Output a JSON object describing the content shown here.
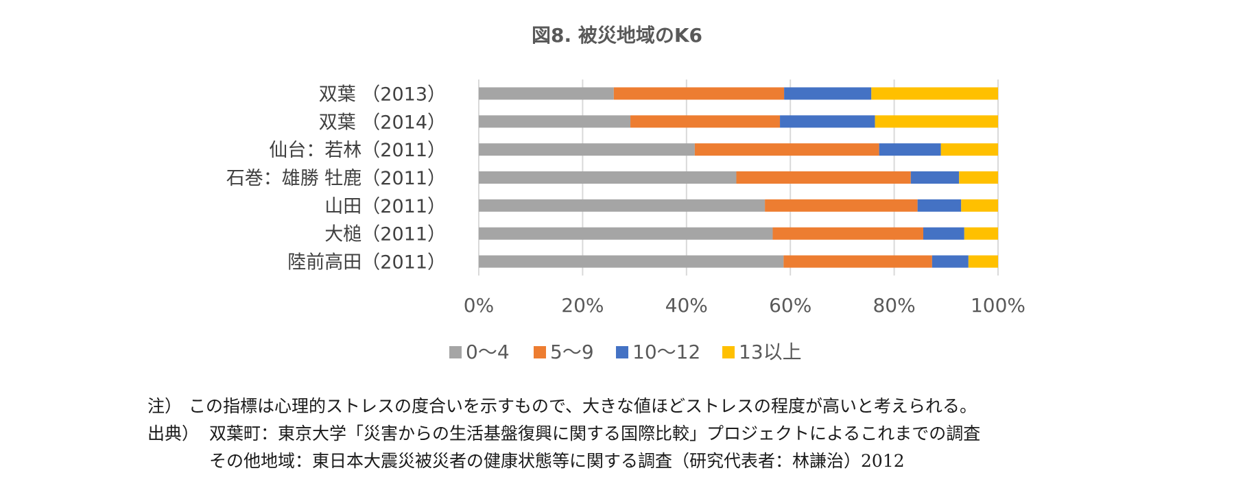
{
  "chart_data": {
    "type": "bar",
    "orientation": "horizontal",
    "stacked": "percent",
    "title": "図8. 被災地域のK6",
    "categories": [
      "双葉 （2013）",
      "双葉 （2014）",
      "仙台：若林（2011）",
      "石巻：雄勝 牡鹿（2011）",
      "山田（2011）",
      "大槌（2011）",
      "陸前高田（2011）"
    ],
    "series": [
      {
        "name": "0～4",
        "color": "#a5a5a5",
        "values": [
          26,
          29.2,
          41.6,
          49.6,
          55.1,
          56.6,
          58.7
        ]
      },
      {
        "name": "5～9",
        "color": "#ed7d31",
        "values": [
          32.8,
          28.8,
          35.5,
          33.6,
          29.4,
          29.0,
          28.6
        ]
      },
      {
        "name": "10～12",
        "color": "#4472c4",
        "values": [
          16.8,
          18.3,
          11.9,
          9.3,
          8.4,
          7.9,
          7.0
        ]
      },
      {
        "name": "13以上",
        "color": "#ffc000",
        "values": [
          24.4,
          23.7,
          11.0,
          7.5,
          7.1,
          6.5,
          5.7
        ]
      }
    ],
    "xlim": [
      0,
      100
    ],
    "x_ticks": [
      "0%",
      "20%",
      "40%",
      "60%",
      "80%",
      "100%"
    ],
    "grid": true,
    "legend": "bottom"
  },
  "notes": [
    {
      "label": "注）",
      "text": "この指標は心理的ストレスの度合いを示すもので、大きな値ほどストレスの程度が高いと考えられる。"
    },
    {
      "label": "出典）",
      "text": "双葉町：東京大学「災害からの生活基盤復興に関する国際比較」プロジェクトによるこれまでの調査"
    },
    {
      "label": "",
      "text": "その他地域：東日本大震災被災者の健康状態等に関する調査（研究代表者：林謙治）2012"
    }
  ]
}
